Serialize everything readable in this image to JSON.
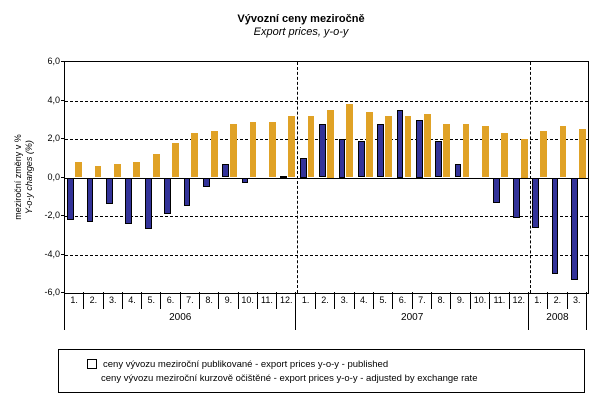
{
  "title": "Vývozní ceny meziročně",
  "subtitle": "Export prices, y-o-y",
  "y_axis": {
    "title_line1": "meziroční změny v %",
    "title_line2": "Y-o-y changes (%)",
    "ticks": [
      "6,0",
      "4,0",
      "2,0",
      "0,0",
      "-2,0",
      "-4,0",
      "-6,0"
    ]
  },
  "legend": {
    "published_label": "ceny vývozu meziroční publikované  - export prices y-o-y - published",
    "adjusted_label": "ceny vývozu meziroční kurzově očištěné - export prices y-o-y - adjusted by exchange rate"
  },
  "colors": {
    "published": "#333399",
    "adjusted": "#E0A226"
  },
  "chart_data": {
    "type": "bar",
    "title": "Vývozní ceny meziročně",
    "subtitle": "Export prices, y-o-y",
    "ylabel": "meziroční změny v % / Y-o-y changes (%)",
    "ylim": [
      -6.0,
      6.0
    ],
    "ytick_step": 2.0,
    "grid": "horizontal-dashed",
    "legend_position": "bottom",
    "groups": [
      {
        "year": "2006",
        "months": [
          "1.",
          "2.",
          "3.",
          "4.",
          "5.",
          "6.",
          "7.",
          "8.",
          "9.",
          "10.",
          "11.",
          "12."
        ]
      },
      {
        "year": "2007",
        "months": [
          "1.",
          "2.",
          "3.",
          "4.",
          "5.",
          "6.",
          "7.",
          "8.",
          "9.",
          "10.",
          "11.",
          "12."
        ]
      },
      {
        "year": "2008",
        "months": [
          "1.",
          "2.",
          "3."
        ]
      }
    ],
    "series": [
      {
        "name": "ceny vývozu meziroční publikované - export prices y-o-y - published",
        "color": "#333399",
        "values": [
          -2.2,
          -2.3,
          -1.4,
          -2.4,
          -2.7,
          -1.9,
          -1.5,
          -0.5,
          0.7,
          -0.3,
          0.0,
          0.1,
          1.0,
          2.8,
          2.0,
          1.9,
          2.8,
          3.5,
          3.0,
          1.9,
          0.7,
          0.0,
          -1.3,
          -2.1,
          -2.6,
          -5.0,
          -5.3
        ]
      },
      {
        "name": "ceny vývozu meziroční kurzově očištěné - export prices y-o-y - adjusted by exchange rate",
        "color": "#E0A226",
        "values": [
          0.8,
          0.6,
          0.7,
          0.8,
          1.2,
          1.8,
          2.3,
          2.4,
          2.8,
          2.9,
          2.9,
          3.2,
          3.2,
          3.5,
          3.8,
          3.4,
          3.2,
          3.2,
          3.3,
          2.8,
          2.8,
          2.7,
          2.3,
          2.0,
          2.4,
          2.7,
          2.5
        ]
      }
    ]
  }
}
